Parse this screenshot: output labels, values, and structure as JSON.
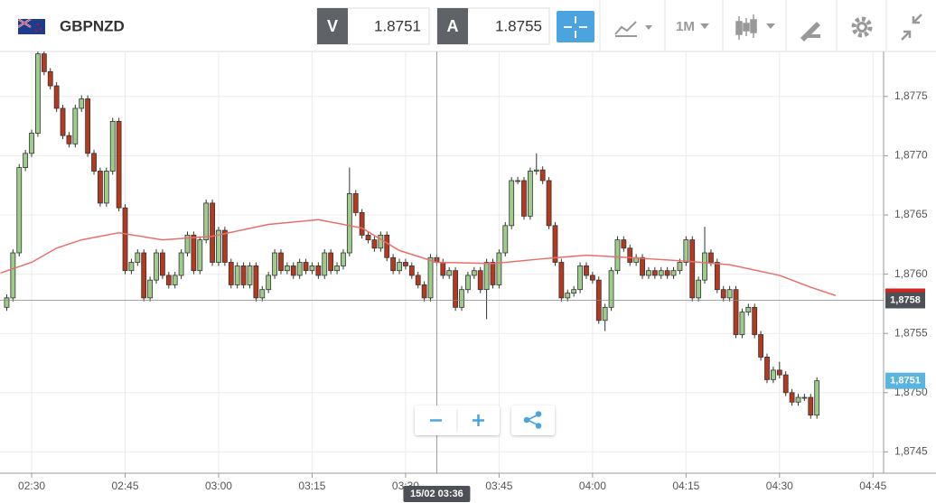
{
  "header": {
    "symbol": "GBPNZD",
    "bid_key": "V",
    "bid": "1.8751",
    "ask_key": "A",
    "ask": "1.8755",
    "timeframe": "1M"
  },
  "chart_data": {
    "type": "candlestick",
    "x": [
      146,
      147,
      148,
      149,
      150,
      151,
      152,
      153,
      154,
      155,
      156,
      157,
      158,
      159,
      160,
      161,
      162,
      163,
      164,
      165,
      166,
      167,
      168,
      169,
      170,
      171,
      172,
      173,
      174,
      175,
      176,
      177,
      178,
      179,
      180,
      181,
      182,
      183,
      184,
      185,
      186,
      187,
      188,
      189,
      190,
      191,
      192,
      193,
      194,
      195,
      196,
      197,
      198,
      199,
      200,
      201,
      202,
      203,
      204,
      205,
      206,
      207,
      208,
      209,
      210,
      211,
      212,
      213,
      214,
      215,
      216,
      217,
      218,
      219,
      220,
      221,
      222,
      223,
      224,
      225,
      226,
      227,
      228,
      229,
      230,
      231,
      232,
      233,
      234,
      235,
      236,
      237,
      238,
      239,
      240,
      241,
      242,
      243,
      244,
      245,
      246,
      247,
      248,
      249,
      250,
      251,
      252,
      253,
      254,
      255,
      256,
      257,
      258,
      259,
      260,
      261,
      262,
      263,
      264,
      265,
      266,
      267,
      268,
      269,
      270,
      271,
      272,
      273,
      274,
      275,
      276
    ],
    "open": [
      1.87572,
      1.8758,
      1.87618,
      1.8769,
      1.87702,
      1.87719,
      1.87786,
      1.87771,
      1.87759,
      1.8774,
      1.87717,
      1.8771,
      1.8774,
      1.87748,
      1.87702,
      1.87687,
      1.8766,
      1.87687,
      1.87729,
      1.87656,
      1.87603,
      1.8761,
      1.87618,
      1.8758,
      1.87595,
      1.87618,
      1.87599,
      1.87591,
      1.87599,
      1.87618,
      1.87633,
      1.87603,
      1.87629,
      1.8766,
      1.8761,
      1.87637,
      1.8761,
      1.87591,
      1.87607,
      1.87591,
      1.87607,
      1.8758,
      1.87587,
      1.87599,
      1.87618,
      1.87603,
      1.87607,
      1.87599,
      1.8761,
      1.87603,
      1.87607,
      1.87599,
      1.87618,
      1.87603,
      1.87607,
      1.87618,
      1.87668,
      1.87652,
      1.87633,
      1.87629,
      1.87622,
      1.87633,
      1.87614,
      1.87603,
      1.8761,
      1.87607,
      1.87599,
      1.87591,
      1.8758,
      1.87614,
      1.8761,
      1.87599,
      1.87603,
      1.87572,
      1.87587,
      1.87599,
      1.87603,
      1.87587,
      1.8761,
      1.87591,
      1.87618,
      1.87641,
      1.87679,
      1.87679,
      1.87649,
      1.87687,
      1.87688,
      1.87679,
      1.87641,
      1.8761,
      1.8758,
      1.87584,
      1.87587,
      1.87607,
      1.87599,
      1.87595,
      1.87561,
      1.87572,
      1.87603,
      1.87629,
      1.87622,
      1.8761,
      1.87614,
      1.87599,
      1.87603,
      1.87599,
      1.87603,
      1.87599,
      1.87603,
      1.8761,
      1.87629,
      1.8758,
      1.87595,
      1.87618,
      1.8761,
      1.87587,
      1.8758,
      1.87587,
      1.87549,
      1.87568,
      1.87572,
      1.87549,
      1.8753,
      1.87511,
      1.87519,
      1.87515,
      1.875,
      1.87492,
      1.87496,
      1.87496,
      1.87481
    ],
    "high": [
      1.87583,
      1.87621,
      1.87693,
      1.87705,
      1.87722,
      1.87789,
      1.87789,
      1.87774,
      1.87762,
      1.87743,
      1.8772,
      1.87743,
      1.87751,
      1.87751,
      1.87705,
      1.8769,
      1.8769,
      1.87732,
      1.87732,
      1.87659,
      1.87613,
      1.87621,
      1.87621,
      1.87598,
      1.87621,
      1.87621,
      1.87602,
      1.87602,
      1.87621,
      1.87636,
      1.87636,
      1.87632,
      1.87663,
      1.87663,
      1.8764,
      1.8764,
      1.87613,
      1.8761,
      1.8761,
      1.8761,
      1.8761,
      1.8759,
      1.87602,
      1.87621,
      1.87621,
      1.8761,
      1.8761,
      1.87613,
      1.87613,
      1.8761,
      1.8761,
      1.87621,
      1.87621,
      1.8761,
      1.87621,
      1.8769,
      1.87671,
      1.87655,
      1.87636,
      1.87632,
      1.87636,
      1.87636,
      1.87617,
      1.87613,
      1.87613,
      1.8761,
      1.87602,
      1.87594,
      1.87617,
      1.87617,
      1.87613,
      1.87606,
      1.87606,
      1.8759,
      1.87602,
      1.87606,
      1.87606,
      1.87613,
      1.87613,
      1.87621,
      1.87644,
      1.87682,
      1.87682,
      1.87682,
      1.8769,
      1.87702,
      1.87691,
      1.87682,
      1.87644,
      1.87613,
      1.87587,
      1.8759,
      1.8761,
      1.8761,
      1.87602,
      1.87598,
      1.87575,
      1.87606,
      1.87632,
      1.87632,
      1.87625,
      1.87617,
      1.87617,
      1.87606,
      1.87606,
      1.87606,
      1.87606,
      1.87606,
      1.87613,
      1.87632,
      1.87632,
      1.87598,
      1.8764,
      1.87621,
      1.87613,
      1.8759,
      1.8759,
      1.8759,
      1.87571,
      1.87575,
      1.87575,
      1.87552,
      1.87533,
      1.87522,
      1.87526,
      1.87518,
      1.87503,
      1.87499,
      1.87499,
      1.87499,
      1.87513
    ],
    "low": [
      1.87569,
      1.87577,
      1.87615,
      1.87687,
      1.87699,
      1.87716,
      1.87768,
      1.87756,
      1.87737,
      1.87714,
      1.87707,
      1.87707,
      1.87737,
      1.87699,
      1.87684,
      1.87657,
      1.87657,
      1.87684,
      1.87653,
      1.876,
      1.876,
      1.87607,
      1.87577,
      1.87577,
      1.87592,
      1.87596,
      1.87588,
      1.87588,
      1.87596,
      1.87615,
      1.876,
      1.876,
      1.87626,
      1.87607,
      1.87607,
      1.87607,
      1.87588,
      1.87588,
      1.87588,
      1.87588,
      1.87577,
      1.87577,
      1.87584,
      1.87596,
      1.876,
      1.876,
      1.87596,
      1.87596,
      1.876,
      1.876,
      1.87596,
      1.87596,
      1.876,
      1.876,
      1.87604,
      1.87615,
      1.87649,
      1.8763,
      1.87626,
      1.87619,
      1.87619,
      1.87611,
      1.876,
      1.876,
      1.87604,
      1.87596,
      1.87588,
      1.87577,
      1.87577,
      1.87607,
      1.87596,
      1.87596,
      1.87569,
      1.87569,
      1.87584,
      1.87596,
      1.87584,
      1.87562,
      1.87588,
      1.87588,
      1.87615,
      1.87638,
      1.87676,
      1.87646,
      1.87646,
      1.87684,
      1.87676,
      1.87638,
      1.87607,
      1.87577,
      1.87577,
      1.87581,
      1.87584,
      1.87596,
      1.87592,
      1.87558,
      1.87552,
      1.87569,
      1.876,
      1.87619,
      1.87607,
      1.87607,
      1.87596,
      1.87596,
      1.87596,
      1.87596,
      1.87596,
      1.87596,
      1.876,
      1.87607,
      1.87577,
      1.87577,
      1.87592,
      1.87607,
      1.87584,
      1.87577,
      1.87577,
      1.87546,
      1.87546,
      1.87565,
      1.87546,
      1.87527,
      1.87508,
      1.87508,
      1.87512,
      1.87497,
      1.87489,
      1.87489,
      1.87493,
      1.87478,
      1.87478
    ],
    "close": [
      1.8758,
      1.87618,
      1.8769,
      1.87702,
      1.87719,
      1.87786,
      1.87771,
      1.87759,
      1.8774,
      1.87717,
      1.8771,
      1.8774,
      1.87748,
      1.87702,
      1.87687,
      1.8766,
      1.87687,
      1.87729,
      1.87656,
      1.87603,
      1.8761,
      1.87618,
      1.8758,
      1.87595,
      1.87618,
      1.87599,
      1.87591,
      1.87599,
      1.87618,
      1.87633,
      1.87603,
      1.87629,
      1.8766,
      1.8761,
      1.87637,
      1.8761,
      1.87591,
      1.87607,
      1.87591,
      1.87607,
      1.8758,
      1.87587,
      1.87599,
      1.87618,
      1.87603,
      1.87607,
      1.87599,
      1.8761,
      1.87603,
      1.87607,
      1.87599,
      1.87618,
      1.87603,
      1.87607,
      1.87618,
      1.87668,
      1.87652,
      1.87633,
      1.87629,
      1.87622,
      1.87633,
      1.87614,
      1.87603,
      1.8761,
      1.87607,
      1.87599,
      1.87591,
      1.8758,
      1.87614,
      1.8761,
      1.87599,
      1.87603,
      1.87572,
      1.87587,
      1.87599,
      1.87603,
      1.87587,
      1.8761,
      1.87591,
      1.87618,
      1.87641,
      1.87679,
      1.87679,
      1.87649,
      1.87687,
      1.87688,
      1.87679,
      1.87641,
      1.8761,
      1.8758,
      1.87584,
      1.87587,
      1.87607,
      1.87599,
      1.87595,
      1.87561,
      1.87572,
      1.87603,
      1.87629,
      1.87622,
      1.8761,
      1.87614,
      1.87599,
      1.87603,
      1.87599,
      1.87603,
      1.87599,
      1.87603,
      1.8761,
      1.87629,
      1.8758,
      1.87595,
      1.87618,
      1.8761,
      1.87587,
      1.8758,
      1.87587,
      1.87549,
      1.87568,
      1.87572,
      1.87549,
      1.8753,
      1.87511,
      1.87519,
      1.87515,
      1.875,
      1.87492,
      1.87496,
      1.87496,
      1.87481,
      1.8751
    ],
    "up_color": "#9dcc8b",
    "down_color": "#b5391e",
    "average": {
      "color": "#ea6f6a",
      "x": [
        145,
        150,
        154,
        158,
        164,
        171,
        179,
        188,
        196,
        203,
        209,
        215,
        224,
        232,
        239,
        246,
        255,
        262,
        270,
        275,
        279
      ],
      "values": [
        1.87601,
        1.8761,
        1.87622,
        1.87629,
        1.87635,
        1.87629,
        1.87632,
        1.87642,
        1.87646,
        1.87639,
        1.8762,
        1.8761,
        1.87609,
        1.87613,
        1.87616,
        1.87614,
        1.87611,
        1.87608,
        1.87599,
        1.87589,
        1.87582
      ]
    },
    "xlim": [
      144.92,
      286.7
    ],
    "xticks": [
      {
        "value": 150,
        "label": "02:30"
      },
      {
        "value": 165,
        "label": "02:45"
      },
      {
        "value": 180,
        "label": "03:00"
      },
      {
        "value": 195,
        "label": "03:15"
      },
      {
        "value": 210,
        "label": "03:30"
      },
      {
        "value": 225,
        "label": "03:45"
      },
      {
        "value": 240,
        "label": "04:00"
      },
      {
        "value": 255,
        "label": "04:15"
      },
      {
        "value": 270,
        "label": "04:30"
      },
      {
        "value": 285,
        "label": "04:45"
      }
    ],
    "ylim": [
      1.87432,
      1.87788
    ],
    "yticks": [
      {
        "value": 1.8745,
        "label": "1,8745"
      },
      {
        "value": 1.875,
        "label": "1,8750"
      },
      {
        "value": 1.8755,
        "label": "1,8755"
      },
      {
        "value": 1.876,
        "label": "1,8760"
      },
      {
        "value": 1.8765,
        "label": "1,8765"
      },
      {
        "value": 1.877,
        "label": "1,8770"
      },
      {
        "value": 1.8775,
        "label": "1,8775"
      }
    ],
    "grid": true,
    "crosshair": {
      "x": 215,
      "x_label": "15/02 03:36",
      "y": 1.87578,
      "y_label": "1,8758"
    },
    "last_price": {
      "value": 1.8751,
      "label": "1,8751",
      "color": "#5ab4e2"
    }
  }
}
